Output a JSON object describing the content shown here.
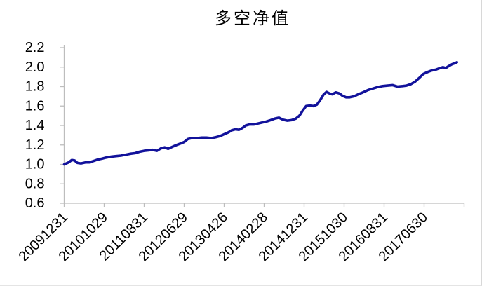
{
  "chart_data": {
    "type": "line",
    "title": "多空净值",
    "x_unit": "x-axis tick index (0 = first tick label)",
    "x_axis": {
      "tick_labels": [
        "20091231",
        "20101029",
        "20110831",
        "20120629",
        "20130426",
        "20140228",
        "20141231",
        "20151030",
        "20160831",
        "20170630"
      ],
      "tick_rotation_deg": -45,
      "num_intervals": 10
    },
    "y_axis": {
      "ticks": [
        0.6,
        0.8,
        1.0,
        1.2,
        1.4,
        1.6,
        1.8,
        2.0,
        2.2
      ],
      "lim": [
        0.6,
        2.2
      ],
      "tick_decimals": 1
    },
    "grid": false,
    "legend_position": "none",
    "line_color": "#12129b",
    "axis_color": "#bdbdbd",
    "text_color": "#000000",
    "series": [
      {
        "name": "多空净值",
        "points": [
          [
            0.0,
            1.0
          ],
          [
            0.11,
            1.02
          ],
          [
            0.19,
            1.045
          ],
          [
            0.26,
            1.04
          ],
          [
            0.33,
            1.015
          ],
          [
            0.42,
            1.01
          ],
          [
            0.53,
            1.02
          ],
          [
            0.63,
            1.02
          ],
          [
            0.74,
            1.035
          ],
          [
            0.84,
            1.05
          ],
          [
            0.95,
            1.06
          ],
          [
            1.05,
            1.07
          ],
          [
            1.18,
            1.08
          ],
          [
            1.3,
            1.085
          ],
          [
            1.42,
            1.09
          ],
          [
            1.54,
            1.1
          ],
          [
            1.67,
            1.11
          ],
          [
            1.77,
            1.115
          ],
          [
            1.88,
            1.13
          ],
          [
            2.0,
            1.14
          ],
          [
            2.11,
            1.145
          ],
          [
            2.21,
            1.15
          ],
          [
            2.32,
            1.14
          ],
          [
            2.42,
            1.165
          ],
          [
            2.51,
            1.175
          ],
          [
            2.6,
            1.16
          ],
          [
            2.7,
            1.18
          ],
          [
            2.81,
            1.2
          ],
          [
            2.91,
            1.215
          ],
          [
            3.0,
            1.23
          ],
          [
            3.09,
            1.26
          ],
          [
            3.19,
            1.27
          ],
          [
            3.32,
            1.27
          ],
          [
            3.44,
            1.275
          ],
          [
            3.56,
            1.275
          ],
          [
            3.68,
            1.27
          ],
          [
            3.79,
            1.28
          ],
          [
            3.89,
            1.29
          ],
          [
            4.0,
            1.31
          ],
          [
            4.11,
            1.33
          ],
          [
            4.19,
            1.35
          ],
          [
            4.28,
            1.36
          ],
          [
            4.37,
            1.355
          ],
          [
            4.46,
            1.375
          ],
          [
            4.54,
            1.4
          ],
          [
            4.63,
            1.41
          ],
          [
            4.74,
            1.41
          ],
          [
            4.84,
            1.42
          ],
          [
            4.95,
            1.43
          ],
          [
            5.05,
            1.44
          ],
          [
            5.16,
            1.455
          ],
          [
            5.26,
            1.47
          ],
          [
            5.37,
            1.48
          ],
          [
            5.47,
            1.46
          ],
          [
            5.58,
            1.45
          ],
          [
            5.68,
            1.455
          ],
          [
            5.79,
            1.47
          ],
          [
            5.88,
            1.5
          ],
          [
            5.96,
            1.55
          ],
          [
            6.05,
            1.6
          ],
          [
            6.14,
            1.605
          ],
          [
            6.23,
            1.6
          ],
          [
            6.32,
            1.615
          ],
          [
            6.4,
            1.66
          ],
          [
            6.49,
            1.72
          ],
          [
            6.56,
            1.745
          ],
          [
            6.63,
            1.73
          ],
          [
            6.7,
            1.72
          ],
          [
            6.79,
            1.74
          ],
          [
            6.88,
            1.73
          ],
          [
            6.96,
            1.705
          ],
          [
            7.05,
            1.69
          ],
          [
            7.14,
            1.69
          ],
          [
            7.25,
            1.7
          ],
          [
            7.35,
            1.72
          ],
          [
            7.47,
            1.74
          ],
          [
            7.6,
            1.765
          ],
          [
            7.72,
            1.78
          ],
          [
            7.84,
            1.795
          ],
          [
            7.96,
            1.805
          ],
          [
            8.09,
            1.81
          ],
          [
            8.21,
            1.815
          ],
          [
            8.33,
            1.8
          ],
          [
            8.46,
            1.805
          ],
          [
            8.56,
            1.81
          ],
          [
            8.67,
            1.825
          ],
          [
            8.77,
            1.85
          ],
          [
            8.88,
            1.89
          ],
          [
            8.98,
            1.93
          ],
          [
            9.09,
            1.95
          ],
          [
            9.19,
            1.965
          ],
          [
            9.3,
            1.975
          ],
          [
            9.4,
            1.99
          ],
          [
            9.47,
            2.0
          ],
          [
            9.54,
            1.99
          ],
          [
            9.61,
            2.01
          ],
          [
            9.7,
            2.03
          ],
          [
            9.77,
            2.04
          ],
          [
            9.82,
            2.05
          ]
        ]
      }
    ]
  }
}
